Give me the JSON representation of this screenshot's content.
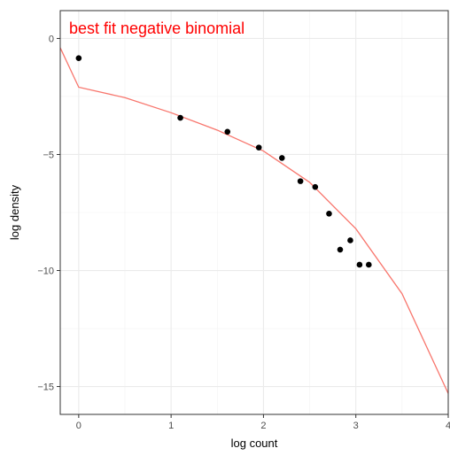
{
  "chart_data": {
    "type": "scatter",
    "annotation": "best fit negative binomial",
    "xlabel": "log count",
    "ylabel": "log density",
    "xlim": [
      -0.2,
      4.0
    ],
    "ylim": [
      -16.2,
      1.2
    ],
    "x_ticks": [
      0,
      1,
      2,
      3,
      4
    ],
    "x_tick_labels": [
      "0",
      "1",
      "2",
      "3",
      "4"
    ],
    "y_ticks": [
      0,
      -5,
      -10,
      -15
    ],
    "y_tick_labels": [
      "0",
      "−5",
      "−10",
      "−15"
    ],
    "grid": true,
    "series": [
      {
        "kind": "points",
        "color": "#000000",
        "x": [
          0.0,
          1.1,
          1.61,
          1.95,
          2.2,
          2.4,
          2.56,
          2.71,
          2.83,
          2.94,
          3.04,
          3.14
        ],
        "y": [
          -0.85,
          -3.42,
          -4.02,
          -4.7,
          -5.15,
          -6.15,
          -6.4,
          -7.55,
          -9.1,
          -8.7,
          -9.75,
          -9.75
        ]
      },
      {
        "kind": "line",
        "color": "#f8766d",
        "x": [
          -0.2,
          0.0,
          0.5,
          1.0,
          1.5,
          2.0,
          2.5,
          3.0,
          3.5,
          4.0
        ],
        "y": [
          -0.4,
          -2.1,
          -2.55,
          -3.2,
          -3.95,
          -4.85,
          -6.2,
          -8.2,
          -11.0,
          -15.3
        ]
      }
    ]
  }
}
